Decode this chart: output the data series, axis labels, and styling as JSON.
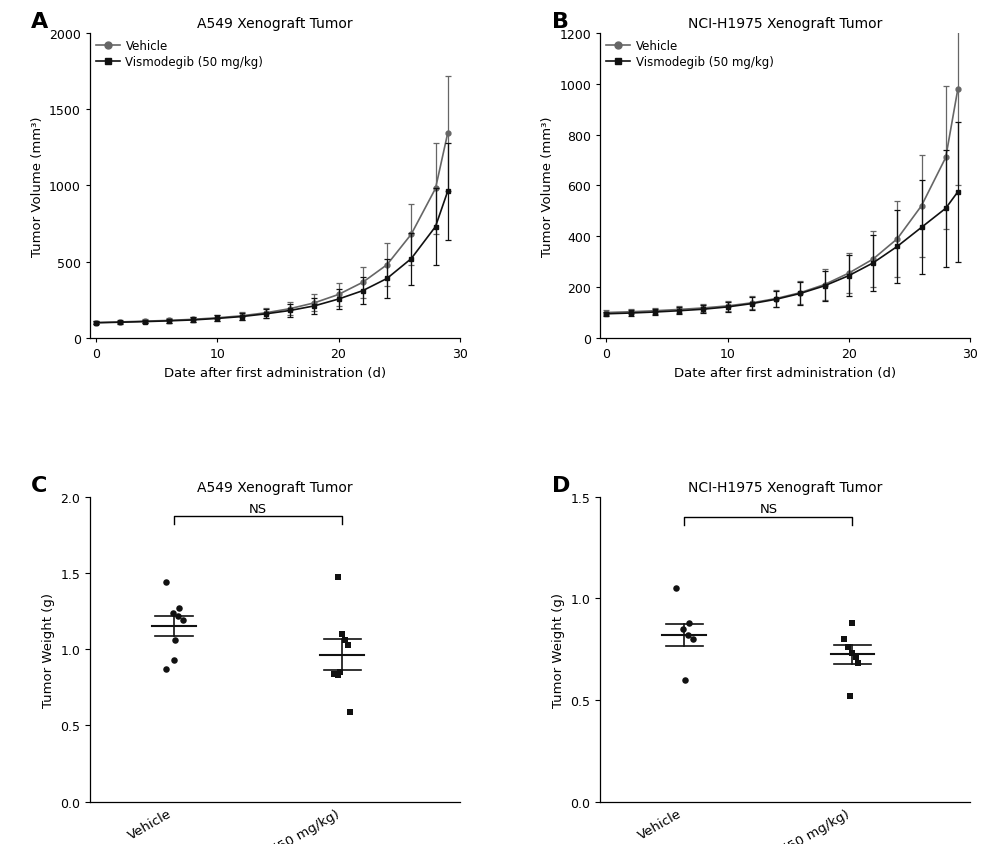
{
  "panel_A_title": "A549 Xenograft Tumor",
  "panel_B_title": "NCI-H1975 Xenograft Tumor",
  "panel_C_title": "A549 Xenograft Tumor",
  "panel_D_title": "NCI-H1975 Xenograft Tumor",
  "xlabel_line": "Date after first administration (d)",
  "ylabel_line": "Tumor Volume (mm³)",
  "ylabel_scatter": "Tumor Weight (g)",
  "legend_vehicle": "Vehicle",
  "legend_vismodegib": "Vismodegib (50 mg/kg)",
  "A_days": [
    0,
    2,
    4,
    6,
    8,
    10,
    12,
    14,
    16,
    18,
    20,
    22,
    24,
    26,
    28,
    29
  ],
  "A_vehicle_mean": [
    100,
    105,
    110,
    115,
    122,
    132,
    145,
    165,
    192,
    230,
    285,
    365,
    480,
    680,
    980,
    1340
  ],
  "A_vehicle_sem": [
    8,
    10,
    12,
    14,
    16,
    20,
    25,
    32,
    42,
    55,
    75,
    100,
    140,
    200,
    300,
    380
  ],
  "A_vismo_mean": [
    100,
    103,
    107,
    112,
    118,
    128,
    140,
    158,
    180,
    210,
    255,
    310,
    390,
    520,
    730,
    960
  ],
  "A_vismo_sem": [
    8,
    10,
    12,
    14,
    16,
    20,
    24,
    30,
    40,
    52,
    68,
    90,
    125,
    170,
    250,
    320
  ],
  "B_days": [
    0,
    2,
    4,
    6,
    8,
    10,
    12,
    14,
    16,
    18,
    20,
    22,
    24,
    26,
    28,
    29
  ],
  "B_vehicle_mean": [
    100,
    103,
    107,
    112,
    118,
    126,
    138,
    155,
    178,
    210,
    255,
    310,
    390,
    520,
    710,
    980
  ],
  "B_vehicle_sem": [
    8,
    10,
    12,
    14,
    16,
    20,
    25,
    32,
    45,
    60,
    80,
    110,
    150,
    200,
    280,
    380
  ],
  "B_vismo_mean": [
    95,
    98,
    102,
    107,
    113,
    122,
    135,
    152,
    175,
    205,
    245,
    295,
    360,
    435,
    510,
    575
  ],
  "B_vismo_sem": [
    8,
    10,
    12,
    14,
    16,
    20,
    25,
    32,
    45,
    60,
    80,
    110,
    145,
    185,
    230,
    275
  ],
  "C_vehicle_points": [
    1.44,
    1.27,
    1.24,
    1.22,
    1.19,
    1.06,
    0.93,
    0.87
  ],
  "C_vehicle_mean": 1.15,
  "C_vehicle_sem": 0.065,
  "C_vismo_points": [
    1.47,
    1.1,
    1.06,
    1.03,
    0.85,
    0.84,
    0.83,
    0.59
  ],
  "C_vismo_mean": 0.965,
  "C_vismo_sem": 0.1,
  "D_vehicle_points": [
    1.05,
    0.88,
    0.85,
    0.82,
    0.8,
    0.6
  ],
  "D_vehicle_mean": 0.82,
  "D_vehicle_sem": 0.055,
  "D_vismo_points": [
    0.88,
    0.8,
    0.76,
    0.73,
    0.71,
    0.68,
    0.52
  ],
  "D_vismo_mean": 0.725,
  "D_vismo_sem": 0.048,
  "line_color_vehicle": "#666666",
  "line_color_vismo": "#111111",
  "dot_color_vehicle": "#111111",
  "dot_color_vismo": "#111111",
  "background_color": "#ffffff"
}
